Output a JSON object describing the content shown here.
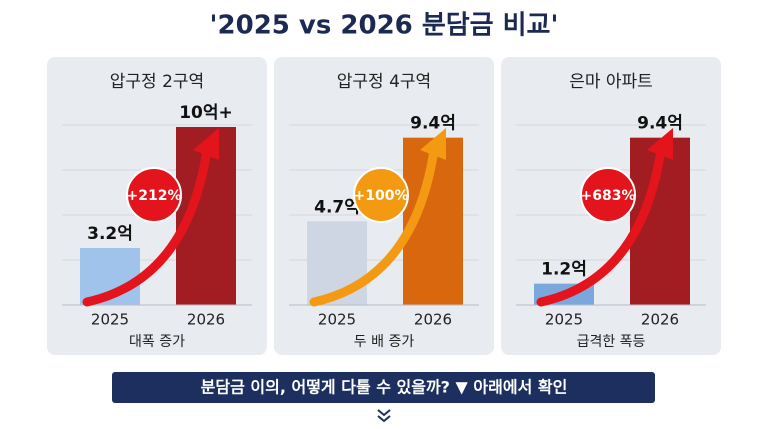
{
  "header": {
    "title": "'2025 vs 2026 분담금 비교'"
  },
  "chart_data": [
    {
      "type": "bar",
      "title": "압구정 2구역",
      "categories": [
        "2025",
        "2026"
      ],
      "values": [
        3.2,
        10
      ],
      "value_labels": [
        "3.2억",
        "10억+"
      ],
      "colors": [
        "#9fc3ea",
        "#a11d22"
      ],
      "annotation": "+212%",
      "annotation_color": "#e3141b",
      "caption": "대폭 증가"
    },
    {
      "type": "bar",
      "title": "압구정 4구역",
      "categories": [
        "2025",
        "2026"
      ],
      "values": [
        4.7,
        9.4
      ],
      "value_labels": [
        "4.7억",
        "9.4억"
      ],
      "colors": [
        "#cdd6e2",
        "#d8670e"
      ],
      "annotation": "+100%",
      "annotation_color": "#f39a12",
      "caption": "두 배 증가"
    },
    {
      "type": "bar",
      "title": "은마 아파트",
      "categories": [
        "2025",
        "2026"
      ],
      "values": [
        1.2,
        9.4
      ],
      "value_labels": [
        "1.2억",
        "9.4억"
      ],
      "colors": [
        "#7aa8dd",
        "#a11d22"
      ],
      "annotation": "+683%",
      "annotation_color": "#e3141b",
      "caption": "급격한 폭등"
    }
  ],
  "banner": {
    "text": "분담금 이의, 어떻게 다툴 수 있을까? ▼ 아래에서 확인"
  }
}
